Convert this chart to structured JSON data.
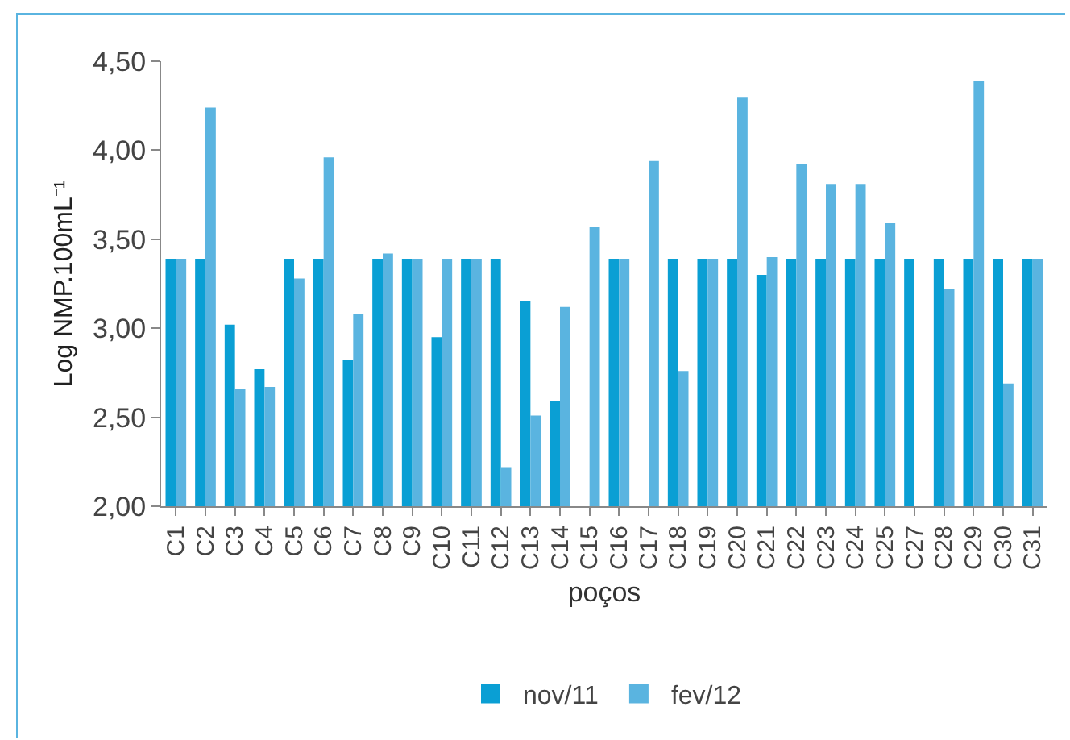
{
  "chart_data": {
    "type": "bar",
    "xlabel": "poços",
    "ylabel": "Log NMP.100mL⁻¹",
    "categories": [
      "C1",
      "C2",
      "C3",
      "C4",
      "C5",
      "C6",
      "C7",
      "C8",
      "C9",
      "C10",
      "C11",
      "C12",
      "C13",
      "C14",
      "C15",
      "C16",
      "C17",
      "C18",
      "C19",
      "C20",
      "C21",
      "C22",
      "C23",
      "C24",
      "C25",
      "C27",
      "C28",
      "C29",
      "C30",
      "C31"
    ],
    "series": [
      {
        "name": "nov/11",
        "color": "#0a9fd4",
        "values": [
          3.39,
          3.39,
          3.02,
          2.77,
          3.39,
          3.39,
          2.82,
          3.39,
          3.39,
          2.95,
          3.39,
          3.39,
          3.15,
          2.59,
          null,
          3.39,
          null,
          3.39,
          3.39,
          3.39,
          3.3,
          3.39,
          3.39,
          3.39,
          3.39,
          3.39,
          3.39,
          3.39,
          3.39,
          3.39
        ]
      },
      {
        "name": "fev/12",
        "color": "#5ab4e0",
        "values": [
          3.39,
          4.24,
          2.66,
          2.67,
          3.28,
          3.96,
          3.08,
          3.42,
          3.39,
          3.39,
          3.39,
          2.22,
          2.51,
          3.12,
          3.57,
          3.39,
          3.94,
          2.76,
          3.39,
          4.3,
          3.4,
          3.92,
          3.81,
          3.81,
          3.59,
          null,
          3.22,
          4.39,
          2.69,
          3.39
        ]
      }
    ],
    "ylim": [
      2,
      4.5
    ],
    "yticks": [
      {
        "value": 2,
        "label": "2,00"
      },
      {
        "value": 2.5,
        "label": "2,50"
      },
      {
        "value": 3,
        "label": "3,00"
      },
      {
        "value": 3.5,
        "label": "3,50"
      },
      {
        "value": 4,
        "label": "4,00"
      },
      {
        "value": 4.5,
        "label": "4,50"
      }
    ],
    "grid": false,
    "legend": "bottom"
  }
}
